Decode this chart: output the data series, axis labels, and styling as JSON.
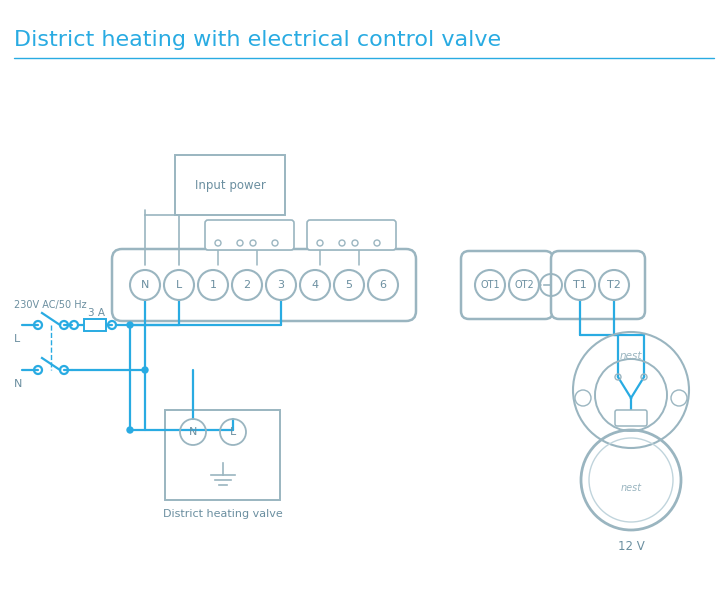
{
  "title": "District heating with electrical control valve",
  "title_color": "#29abe2",
  "title_fontsize": 16,
  "bg_color": "#ffffff",
  "line_color": "#29abe2",
  "device_color": "#9ab5c0",
  "text_color": "#6b8fa0",
  "terminal_labels": [
    "N",
    "L",
    "1",
    "2",
    "3",
    "4",
    "5",
    "6"
  ],
  "terminal_ot_labels": [
    "OT1",
    "OT2"
  ],
  "terminal_right_labels": [
    "T1",
    "T2"
  ],
  "note_3a": "3 A",
  "note_230v": "230V AC/50 Hz",
  "note_L": "L",
  "note_N": "N",
  "note_input_power": "Input power",
  "note_district": "District heating valve",
  "note_12v": "12 V"
}
